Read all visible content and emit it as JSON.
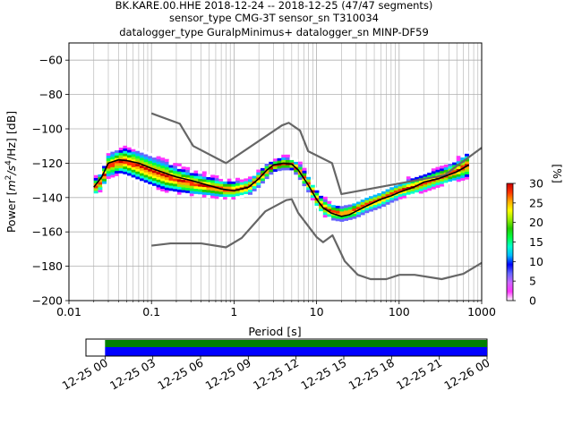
{
  "title_lines": [
    "BK.KARE.00.HHE   2018-12-24 -- 2018-12-25  (47/47 segments)",
    "sensor_type CMG-3T sensor_sn T310034",
    "datalogger_type GuralpMinimus+ datalogger_sn MINP-DF59"
  ],
  "chart_data": [
    {
      "type": "heatmap",
      "subtype": "probabilistic-power-spectral-density",
      "xlabel": "Period [s]",
      "ylabel_parts": {
        "pre": "Power [",
        "m": "m",
        "two": "2",
        "slash": "/s",
        "four": "4",
        "rest": "/Hz] [dB]"
      },
      "x_scale": "log",
      "xlim": [
        0.01,
        1000
      ],
      "ylim": [
        -200,
        -50
      ],
      "x_ticks": [
        {
          "v": 0.01,
          "label": "0.01"
        },
        {
          "v": 0.1,
          "label": "0.1"
        },
        {
          "v": 1,
          "label": "1"
        },
        {
          "v": 10,
          "label": "10"
        },
        {
          "v": 100,
          "label": "100"
        },
        {
          "v": 1000,
          "label": "1000"
        }
      ],
      "y_ticks": [
        {
          "v": -60,
          "label": "−60"
        },
        {
          "v": -80,
          "label": "−80"
        },
        {
          "v": -100,
          "label": "−100"
        },
        {
          "v": -120,
          "label": "−120"
        },
        {
          "v": -140,
          "label": "−140"
        },
        {
          "v": -160,
          "label": "−160"
        },
        {
          "v": -180,
          "label": "−180"
        },
        {
          "v": -200,
          "label": "−200"
        }
      ],
      "grid": true,
      "colorbar": {
        "label": "[%]",
        "range": [
          0,
          30
        ],
        "ticks": [
          {
            "v": 0,
            "label": "0"
          },
          {
            "v": 5,
            "label": "5"
          },
          {
            "v": 10,
            "label": "10"
          },
          {
            "v": 15,
            "label": "15"
          },
          {
            "v": 20,
            "label": "20"
          },
          {
            "v": 25,
            "label": "25"
          },
          {
            "v": 30,
            "label": "30"
          }
        ],
        "colors": [
          "#ffffff",
          "#ff33ff",
          "#cc66ff",
          "#6666ff",
          "#0000ff",
          "#00bbff",
          "#00ffcc",
          "#00ff44",
          "#22cc00",
          "#99ee00",
          "#ffff00",
          "#ffaa00",
          "#ff3300",
          "#cc0000"
        ]
      },
      "series": [
        {
          "role": "noise-model-high",
          "color": "#666666",
          "points": [
            [
              0.1,
              -91
            ],
            [
              0.22,
              -97
            ],
            [
              0.32,
              -110
            ],
            [
              0.8,
              -120
            ],
            [
              3.8,
              -98
            ],
            [
              4.6,
              -96.5
            ],
            [
              6.3,
              -101
            ],
            [
              7.9,
              -113
            ],
            [
              15.4,
              -120
            ],
            [
              20,
              -138
            ],
            [
              354,
              -127
            ],
            [
              1000,
              -111
            ]
          ]
        },
        {
          "role": "noise-model-low",
          "color": "#666666",
          "points": [
            [
              0.1,
              -168
            ],
            [
              0.17,
              -166.7
            ],
            [
              0.4,
              -166.7
            ],
            [
              0.8,
              -169
            ],
            [
              1.24,
              -163.5
            ],
            [
              2.4,
              -148
            ],
            [
              4.3,
              -141.5
            ],
            [
              5,
              -141
            ],
            [
              6,
              -149
            ],
            [
              10,
              -163
            ],
            [
              12,
              -166
            ],
            [
              15.6,
              -162
            ],
            [
              21.9,
              -177
            ],
            [
              31.6,
              -185
            ],
            [
              45,
              -187.5
            ],
            [
              70,
              -187.5
            ],
            [
              101,
              -185
            ],
            [
              154,
              -185
            ],
            [
              328,
              -187.5
            ],
            [
              600,
              -184.4
            ],
            [
              1000,
              -178
            ]
          ]
        },
        {
          "role": "mode",
          "color": "#000000",
          "points": [
            [
              0.02,
              -134
            ],
            [
              0.025,
              -128
            ],
            [
              0.03,
              -120
            ],
            [
              0.04,
              -118
            ],
            [
              0.05,
              -118.5
            ],
            [
              0.07,
              -120
            ],
            [
              0.1,
              -123
            ],
            [
              0.15,
              -126
            ],
            [
              0.2,
              -128
            ],
            [
              0.3,
              -130
            ],
            [
              0.5,
              -133
            ],
            [
              0.7,
              -135
            ],
            [
              1,
              -136
            ],
            [
              1.5,
              -134
            ],
            [
              2,
              -129
            ],
            [
              2.5,
              -124
            ],
            [
              3,
              -121
            ],
            [
              4,
              -120
            ],
            [
              5,
              -120.5
            ],
            [
              6,
              -124
            ],
            [
              8,
              -133
            ],
            [
              10,
              -141
            ],
            [
              12,
              -146
            ],
            [
              15,
              -149
            ],
            [
              20,
              -151
            ],
            [
              25,
              -150
            ],
            [
              30,
              -148
            ],
            [
              40,
              -145
            ],
            [
              60,
              -141
            ],
            [
              80,
              -139
            ],
            [
              100,
              -137
            ],
            [
              150,
              -134
            ],
            [
              200,
              -131
            ],
            [
              300,
              -129
            ],
            [
              500,
              -125
            ],
            [
              700,
              -121
            ]
          ]
        }
      ],
      "ppsd_band": [
        [
          0.02,
          -129,
          -140
        ],
        [
          0.025,
          -124,
          -136
        ],
        [
          0.03,
          -114,
          -129
        ],
        [
          0.04,
          -111,
          -127
        ],
        [
          0.05,
          -110,
          -128
        ],
        [
          0.07,
          -112,
          -131
        ],
        [
          0.1,
          -115,
          -134
        ],
        [
          0.15,
          -118,
          -137
        ],
        [
          0.2,
          -121,
          -138
        ],
        [
          0.3,
          -124,
          -139
        ],
        [
          0.5,
          -127,
          -140
        ],
        [
          0.7,
          -129,
          -141
        ],
        [
          1,
          -130,
          -141
        ],
        [
          1.5,
          -129,
          -139
        ],
        [
          2,
          -124,
          -134
        ],
        [
          2.5,
          -120,
          -129
        ],
        [
          3,
          -118,
          -125
        ],
        [
          4,
          -116,
          -124
        ],
        [
          5,
          -117,
          -124
        ],
        [
          6,
          -119,
          -128
        ],
        [
          8,
          -127,
          -137
        ],
        [
          10,
          -135,
          -146
        ],
        [
          12,
          -140,
          -151
        ],
        [
          15,
          -143,
          -153
        ],
        [
          20,
          -145,
          -154
        ],
        [
          25,
          -144,
          -153
        ],
        [
          30,
          -142,
          -152
        ],
        [
          40,
          -139,
          -149
        ],
        [
          60,
          -136,
          -146
        ],
        [
          80,
          -133,
          -143
        ],
        [
          100,
          -131,
          -141
        ],
        [
          150,
          -128,
          -139
        ],
        [
          200,
          -126,
          -137
        ],
        [
          300,
          -123,
          -134
        ],
        [
          500,
          -118,
          -131
        ],
        [
          700,
          -112,
          -129
        ]
      ]
    },
    {
      "type": "timeline",
      "tick_labels": [
        "12-25 00",
        "12-25 03",
        "12-25 06",
        "12-25 09",
        "12-25 12",
        "12-25 15",
        "12-25 18",
        "12-25 21",
        "12-26 00"
      ],
      "tick_hours": [
        0,
        3,
        6,
        9,
        12,
        15,
        18,
        21,
        24
      ],
      "view_range_hours": [
        -1.2,
        1.2,
        24
      ],
      "coverage_hours": [
        0,
        24
      ],
      "coverage_colors": {
        "top": "#008000",
        "bottom": "#0000ff"
      }
    }
  ]
}
